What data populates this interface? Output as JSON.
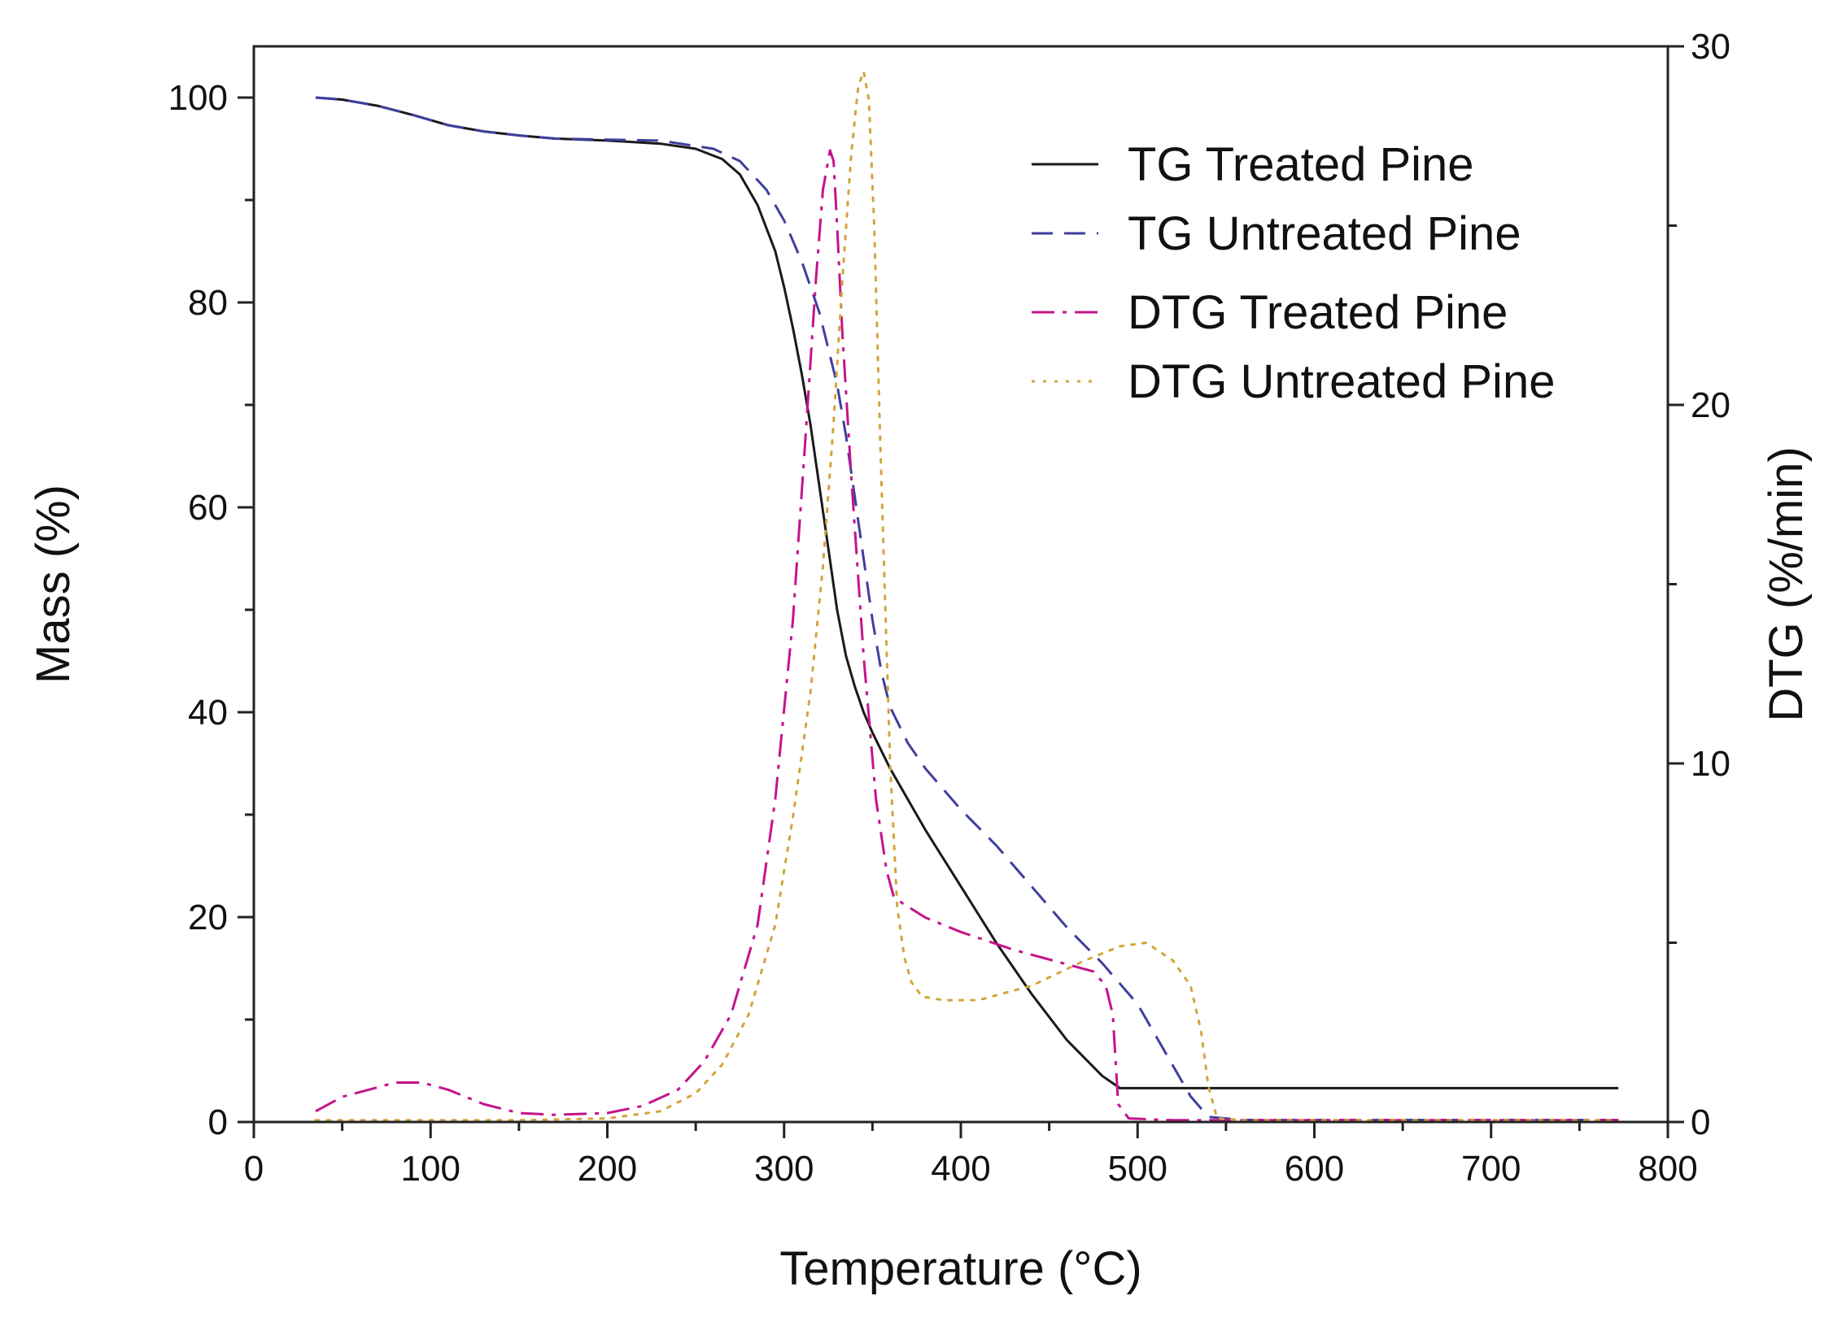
{
  "chart_data": {
    "type": "line",
    "xlabel": "Temperature (°C)",
    "ylabel": "Mass (%)",
    "y2label": "DTG (%/min)",
    "xlim": [
      0,
      800
    ],
    "ylim": [
      0,
      105
    ],
    "y2lim": [
      0,
      30
    ],
    "x_ticks": [
      0,
      100,
      200,
      300,
      400,
      500,
      600,
      700,
      800
    ],
    "y_ticks": [
      0,
      20,
      40,
      60,
      80,
      100
    ],
    "y2_ticks": [
      0,
      10,
      20,
      30
    ],
    "grid": false,
    "legend_position": "top-right",
    "series": [
      {
        "name": "TG Treated Pine",
        "axis": "left",
        "color": "#1a1a1a",
        "dash": "solid",
        "x": [
          35,
          50,
          70,
          90,
          110,
          130,
          150,
          170,
          200,
          230,
          250,
          265,
          275,
          285,
          295,
          300,
          305,
          310,
          315,
          320,
          325,
          330,
          335,
          340,
          345,
          350,
          360,
          370,
          380,
          400,
          420,
          440,
          460,
          480,
          490,
          500,
          600,
          700,
          772
        ],
        "y": [
          100,
          99.8,
          99.2,
          98.3,
          97.3,
          96.7,
          96.3,
          96.0,
          95.8,
          95.5,
          95.0,
          94.0,
          92.5,
          89.5,
          85.0,
          81.5,
          77.5,
          73.0,
          68.0,
          62.0,
          56.0,
          50.0,
          45.5,
          42.5,
          40.0,
          38.0,
          34.5,
          31.5,
          28.5,
          23.0,
          17.5,
          12.5,
          8.0,
          4.5,
          3.3,
          3.3,
          3.3,
          3.3,
          3.3
        ]
      },
      {
        "name": "TG Untreated Pine",
        "axis": "left",
        "color": "#3f3f9e",
        "dash": "dashed",
        "x": [
          35,
          50,
          70,
          90,
          110,
          130,
          150,
          170,
          200,
          230,
          260,
          275,
          290,
          300,
          310,
          320,
          330,
          335,
          340,
          345,
          350,
          355,
          360,
          370,
          380,
          400,
          420,
          440,
          460,
          480,
          500,
          510,
          520,
          530,
          540,
          560,
          600,
          700,
          772
        ],
        "y": [
          100,
          99.8,
          99.2,
          98.3,
          97.3,
          96.7,
          96.3,
          96.0,
          95.9,
          95.8,
          95.0,
          93.8,
          91.0,
          88.0,
          84.0,
          79.0,
          72.0,
          67.0,
          61.0,
          55.0,
          49.0,
          44.0,
          40.5,
          37.0,
          34.5,
          30.5,
          27.0,
          23.0,
          19.0,
          15.5,
          11.5,
          8.5,
          5.5,
          2.5,
          0.5,
          0.2,
          0.2,
          0.2,
          0.2
        ]
      },
      {
        "name": "DTG Treated Pine",
        "axis": "right",
        "color": "#c4148c",
        "dash": "dashdot",
        "x": [
          35,
          50,
          65,
          80,
          95,
          110,
          130,
          150,
          170,
          200,
          220,
          240,
          255,
          270,
          285,
          295,
          305,
          312,
          318,
          322,
          326,
          328,
          330,
          333,
          338,
          345,
          352,
          358,
          362,
          367,
          380,
          400,
          430,
          460,
          475,
          482,
          486,
          489,
          495,
          520,
          600,
          700,
          772
        ],
        "y": [
          0.3,
          0.7,
          0.9,
          1.1,
          1.1,
          0.9,
          0.5,
          0.25,
          0.2,
          0.25,
          0.45,
          0.9,
          1.7,
          3.0,
          5.5,
          9.0,
          14.0,
          19.0,
          23.5,
          26.0,
          27.1,
          26.8,
          25.0,
          22.0,
          18.0,
          13.0,
          9.0,
          7.0,
          6.3,
          6.1,
          5.7,
          5.3,
          4.8,
          4.4,
          4.2,
          3.8,
          3.0,
          0.5,
          0.1,
          0.05,
          0.05,
          0.05,
          0.05
        ]
      },
      {
        "name": "DTG Untreated Pine",
        "axis": "right",
        "color": "#d3a43a",
        "dash": "dotted",
        "x": [
          35,
          100,
          150,
          200,
          230,
          250,
          265,
          280,
          295,
          305,
          315,
          322,
          328,
          333,
          338,
          342,
          345,
          348,
          351,
          355,
          360,
          364,
          368,
          372,
          378,
          390,
          410,
          440,
          470,
          490,
          505,
          520,
          530,
          536,
          540,
          545,
          560,
          600,
          700,
          772
        ],
        "y": [
          0.05,
          0.05,
          0.05,
          0.1,
          0.3,
          0.8,
          1.6,
          3.0,
          5.5,
          8.5,
          12.0,
          15.5,
          19.5,
          23.5,
          27.0,
          28.9,
          29.3,
          28.5,
          25.0,
          18.0,
          10.0,
          6.0,
          4.6,
          3.9,
          3.5,
          3.4,
          3.4,
          3.8,
          4.5,
          4.9,
          5.0,
          4.5,
          3.8,
          2.5,
          1.0,
          0.1,
          0.05,
          0.05,
          0.05,
          0.05
        ]
      }
    ]
  }
}
